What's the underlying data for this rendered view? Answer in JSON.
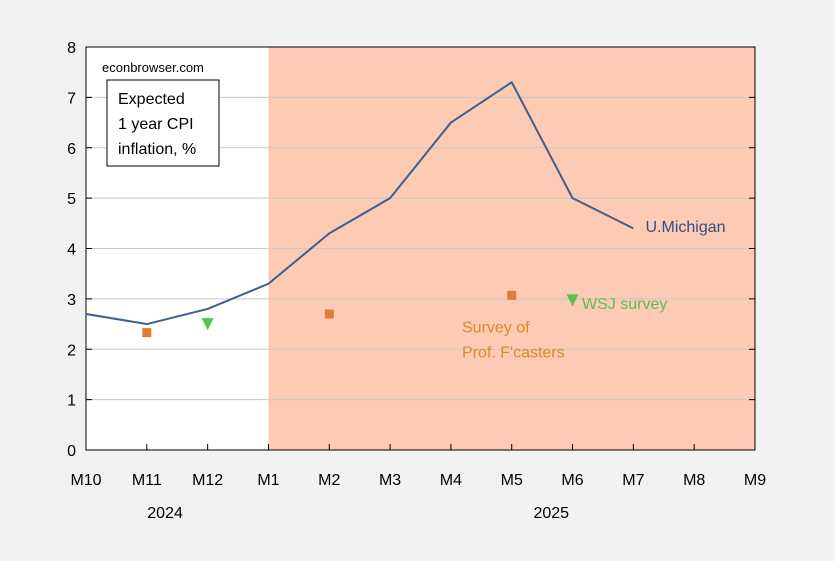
{
  "source": "econbrowser.com",
  "title_lines": [
    "Expected",
    "1 year CPI",
    "inflation, %"
  ],
  "chart_data": {
    "type": "line",
    "x_categories": [
      "M10",
      "M11",
      "M12",
      "M1",
      "M2",
      "M3",
      "M4",
      "M5",
      "M6",
      "M7",
      "M8",
      "M9"
    ],
    "year_labels": [
      {
        "label": "2024",
        "center_index": 1.3
      },
      {
        "label": "2025",
        "center_index": 7.65
      }
    ],
    "ylim": [
      0,
      8
    ],
    "yticks": [
      0,
      1,
      2,
      3,
      4,
      5,
      6,
      7,
      8
    ],
    "grid": true,
    "shaded_region": {
      "from": "M1",
      "to": "M9",
      "color": "#fdcab4"
    },
    "series": [
      {
        "name": "U.Michigan",
        "kind": "line",
        "color": "#3d5f8e",
        "label_color": "#2e5087",
        "label_anchor_index": 9.2,
        "label_value": 4.45,
        "x": [
          "M10",
          "M11",
          "M12",
          "M1",
          "M2",
          "M3",
          "M4",
          "M5",
          "M6",
          "M7"
        ],
        "values": [
          2.7,
          2.5,
          2.8,
          3.3,
          4.3,
          5.0,
          6.5,
          7.3,
          5.0,
          4.4
        ]
      },
      {
        "name": "Survey of Prof. F'casters",
        "label_lines": [
          "Survey of",
          "Prof. F'casters"
        ],
        "kind": "square",
        "color": "#e07b39",
        "label_color": "#d98a2b",
        "label_anchor_index": 6.2,
        "label_value": 2.45,
        "x": [
          "M11",
          "M2",
          "M5"
        ],
        "values": [
          2.33,
          2.7,
          3.07
        ]
      },
      {
        "name": "WSJ survey",
        "kind": "triangle-down",
        "color": "#5cc150",
        "label_color": "#5cc150",
        "label_anchor_index": 6.2,
        "label_value": 2.92,
        "x": [
          "M12",
          "M6"
        ],
        "values": [
          2.5,
          2.97
        ]
      }
    ]
  }
}
